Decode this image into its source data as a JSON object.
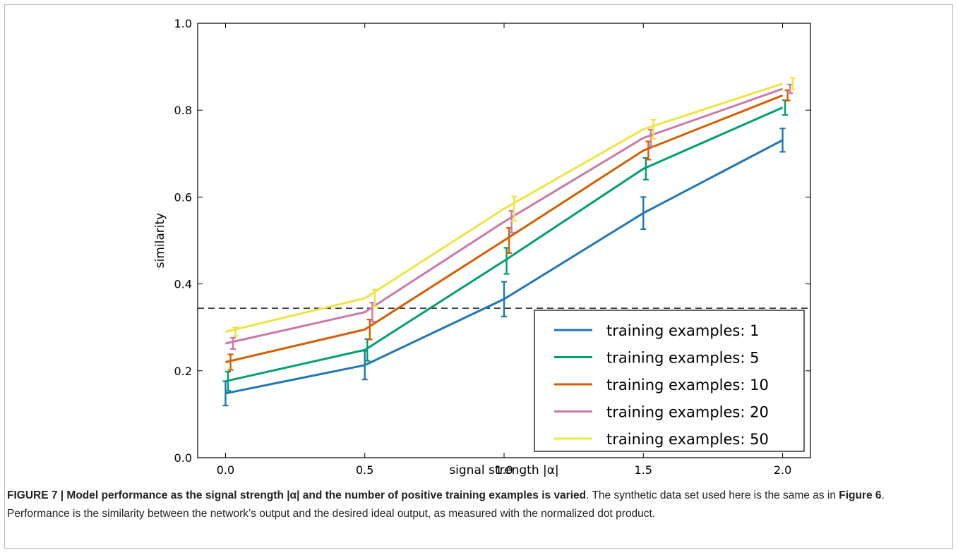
{
  "chart_data": {
    "type": "line",
    "xlabel": "signal strength |α|",
    "ylabel": "similarity",
    "xlim": [
      -0.1,
      2.1
    ],
    "ylim": [
      0.0,
      1.0
    ],
    "xticks": [
      "0.0",
      "0.5",
      "1.0",
      "1.5",
      "2.0"
    ],
    "yticks": [
      "0.0",
      "0.2",
      "0.4",
      "0.6",
      "0.8",
      "1.0"
    ],
    "grid": false,
    "legend_position": "lower-right",
    "baseline": 0.344,
    "series": [
      {
        "name": "training examples: 1",
        "color": "#1f77b4",
        "x": [
          0.0,
          0.5,
          1.0,
          1.5,
          2.0
        ],
        "y": [
          0.148,
          0.213,
          0.365,
          0.563,
          0.731
        ],
        "err": [
          0.028,
          0.033,
          0.04,
          0.037,
          0.027
        ]
      },
      {
        "name": "training examples: 5",
        "color": "#009e73",
        "x": [
          0.0,
          0.5,
          1.0,
          1.5,
          2.0
        ],
        "y": [
          0.176,
          0.248,
          0.453,
          0.665,
          0.806
        ],
        "err": [
          0.022,
          0.025,
          0.03,
          0.025,
          0.017
        ]
      },
      {
        "name": "training examples: 10",
        "color": "#d55e00",
        "x": [
          0.0,
          0.5,
          1.0,
          1.5,
          2.0
        ],
        "y": [
          0.22,
          0.295,
          0.5,
          0.707,
          0.834
        ],
        "err": [
          0.018,
          0.023,
          0.029,
          0.021,
          0.012
        ]
      },
      {
        "name": "training examples: 20",
        "color": "#cc79a7",
        "x": [
          0.0,
          0.5,
          1.0,
          1.5,
          2.0
        ],
        "y": [
          0.263,
          0.335,
          0.543,
          0.736,
          0.849
        ],
        "err": [
          0.013,
          0.022,
          0.025,
          0.019,
          0.01
        ]
      },
      {
        "name": "training examples: 50",
        "color": "#f0e442",
        "x": [
          0.0,
          0.5,
          1.0,
          1.5,
          2.0
        ],
        "y": [
          0.29,
          0.367,
          0.573,
          0.756,
          0.861
        ],
        "err": [
          0.01,
          0.02,
          0.028,
          0.022,
          0.013
        ]
      }
    ]
  },
  "caption": {
    "label": "FIGURE 7 | Model performance as the signal strength |α| and the number of positive training examples is varied",
    "text1": ". The synthetic data set used here is the same as in ",
    "figref": "Figure 6",
    "text2": ". Performance is the similarity between the network’s output and the desired ideal output, as measured with the normalized dot product."
  }
}
